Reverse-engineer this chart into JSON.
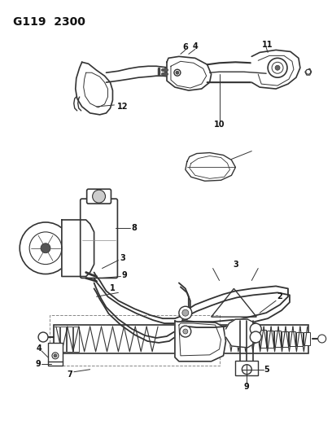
{
  "title": "G119  2300",
  "background_color": "#ffffff",
  "line_color": "#333333",
  "text_color": "#111111",
  "fig_width": 4.08,
  "fig_height": 5.33,
  "dpi": 100
}
